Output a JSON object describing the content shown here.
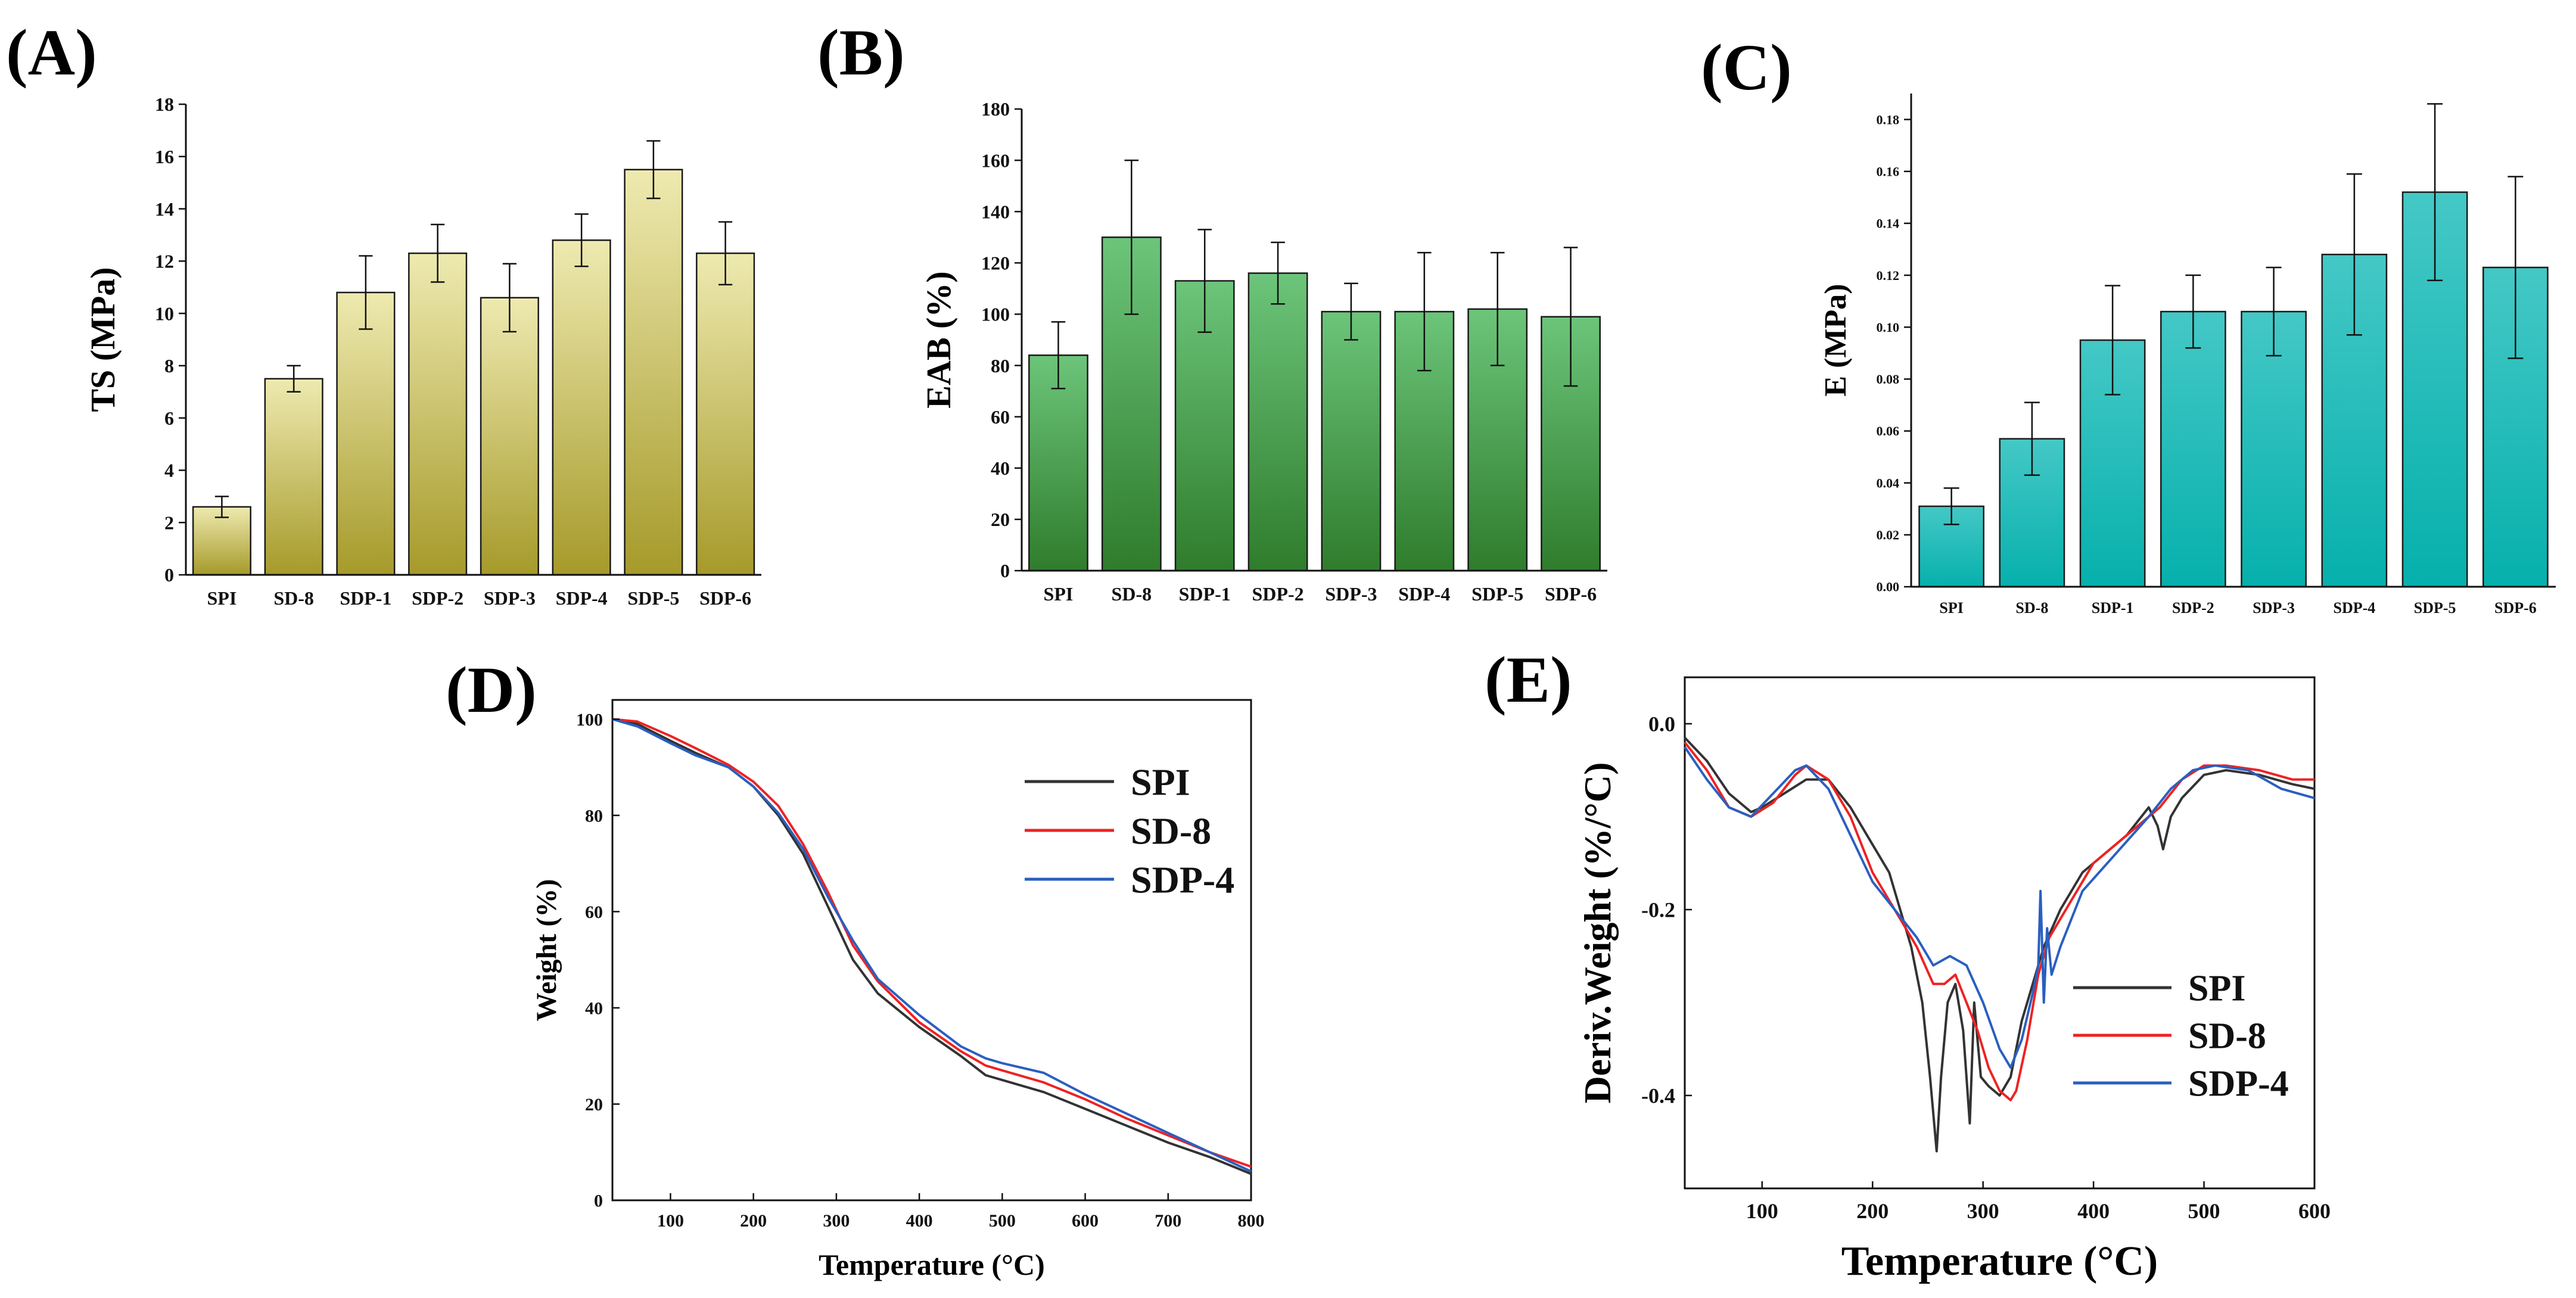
{
  "chart_data": [
    {
      "id": "A",
      "type": "bar",
      "panel_label": "(A)",
      "ylabel": "TS (MPa)",
      "xlabel": "",
      "categories": [
        "SPI",
        "SD-8",
        "SDP-1",
        "SDP-2",
        "SDP-3",
        "SDP-4",
        "SDP-5",
        "SDP-6"
      ],
      "values": [
        2.6,
        7.5,
        10.8,
        12.3,
        10.6,
        12.8,
        15.5,
        12.3
      ],
      "errors": [
        0.4,
        0.5,
        1.4,
        1.1,
        1.3,
        1.0,
        1.1,
        1.2
      ],
      "ylim": [
        0,
        18
      ],
      "yticks": [
        0,
        2,
        4,
        6,
        8,
        10,
        12,
        14,
        16,
        18
      ],
      "color_top": "#eeeab0",
      "color_bottom": "#a69a2a"
    },
    {
      "id": "B",
      "type": "bar",
      "panel_label": "(B)",
      "ylabel": "EAB (%)",
      "xlabel": "",
      "categories": [
        "SPI",
        "SD-8",
        "SDP-1",
        "SDP-2",
        "SDP-3",
        "SDP-4",
        "SDP-5",
        "SDP-6"
      ],
      "values": [
        84,
        130,
        113,
        116,
        101,
        101,
        102,
        99
      ],
      "errors": [
        13,
        30,
        20,
        12,
        11,
        23,
        22,
        27
      ],
      "ylim": [
        0,
        180
      ],
      "yticks": [
        0,
        20,
        40,
        60,
        80,
        100,
        120,
        140,
        160,
        180
      ],
      "color_top": "#6cc57a",
      "color_bottom": "#2f7c2c"
    },
    {
      "id": "C",
      "type": "bar",
      "panel_label": "(C)",
      "ylabel": "E (MPa)",
      "xlabel": "",
      "categories": [
        "SPI",
        "SD-8",
        "SDP-1",
        "SDP-2",
        "SDP-3",
        "SDP-4",
        "SDP-5",
        "SDP-6"
      ],
      "values": [
        0.031,
        0.057,
        0.095,
        0.106,
        0.106,
        0.128,
        0.152,
        0.123
      ],
      "errors": [
        0.007,
        0.014,
        0.021,
        0.014,
        0.017,
        0.031,
        0.034,
        0.035
      ],
      "ylim": [
        0,
        0.19
      ],
      "yticks": [
        0.0,
        0.02,
        0.04,
        0.06,
        0.08,
        0.1,
        0.12,
        0.14,
        0.16,
        0.18
      ],
      "ytick_labels": [
        "0.00",
        "0.02",
        "0.04",
        "0.06",
        "0.08",
        "0.10",
        "0.12",
        "0.14",
        "0.16",
        "0.18"
      ],
      "color_top": "#44c8c6",
      "color_bottom": "#06b0ac"
    },
    {
      "id": "D",
      "type": "line",
      "panel_label": "(D)",
      "xlabel": "Temperature (°C)",
      "ylabel": "Weight (%)",
      "xlim": [
        30,
        800
      ],
      "ylim": [
        0,
        104
      ],
      "xticks": [
        100,
        200,
        300,
        400,
        500,
        600,
        700,
        800
      ],
      "yticks": [
        0,
        20,
        40,
        60,
        80,
        100
      ],
      "legend_position": "top-right",
      "series": [
        {
          "name": "SPI",
          "color": "#333333",
          "x": [
            30,
            60,
            100,
            130,
            170,
            200,
            230,
            260,
            290,
            320,
            350,
            400,
            450,
            480,
            500,
            550,
            600,
            650,
            700,
            750,
            800
          ],
          "y": [
            100,
            99,
            95.5,
            93,
            90,
            86,
            80,
            72,
            61,
            50,
            43,
            36,
            30,
            26,
            25,
            22.5,
            19,
            15.5,
            12,
            9,
            5.5
          ]
        },
        {
          "name": "SD-8",
          "color": "#ee2222",
          "x": [
            30,
            60,
            100,
            130,
            170,
            200,
            230,
            260,
            290,
            320,
            350,
            400,
            450,
            480,
            500,
            550,
            600,
            650,
            700,
            750,
            800
          ],
          "y": [
            100,
            99.5,
            96.5,
            94,
            90.5,
            87,
            82,
            74,
            64,
            53,
            45.5,
            37,
            31,
            28,
            27,
            24.5,
            21,
            17,
            13.5,
            10,
            7
          ]
        },
        {
          "name": "SDP-4",
          "color": "#2a5fc0",
          "x": [
            30,
            60,
            100,
            130,
            170,
            200,
            230,
            260,
            290,
            320,
            350,
            400,
            450,
            480,
            500,
            550,
            600,
            650,
            700,
            750,
            800
          ],
          "y": [
            100,
            98.5,
            95,
            92.5,
            90,
            86,
            80.5,
            73,
            63,
            54,
            46,
            38.5,
            32,
            29.5,
            28.5,
            26.5,
            22,
            18,
            14,
            10,
            6
          ]
        }
      ]
    },
    {
      "id": "E",
      "type": "line",
      "panel_label": "(E)",
      "xlabel": "Temperature (°C)",
      "ylabel": "Deriv.Weight (%/°C)",
      "xlim": [
        30,
        600
      ],
      "ylim": [
        -0.5,
        0.05
      ],
      "xticks": [
        100,
        200,
        300,
        400,
        500,
        600
      ],
      "yticks": [
        0.0,
        -0.2,
        -0.4
      ],
      "ytick_labels": [
        "0.0",
        "-0.2",
        "-0.4"
      ],
      "legend_position": "bottom-right",
      "series": [
        {
          "name": "SPI",
          "color": "#333333",
          "x": [
            30,
            50,
            70,
            90,
            100,
            120,
            140,
            160,
            180,
            200,
            215,
            225,
            235,
            245,
            252,
            258,
            262,
            268,
            275,
            282,
            288,
            292,
            298,
            305,
            315,
            325,
            335,
            345,
            355,
            370,
            390,
            410,
            430,
            450,
            458,
            463,
            470,
            480,
            500,
            520,
            550,
            580,
            600
          ],
          "y": [
            -0.015,
            -0.04,
            -0.075,
            -0.095,
            -0.09,
            -0.075,
            -0.06,
            -0.06,
            -0.09,
            -0.13,
            -0.16,
            -0.2,
            -0.24,
            -0.3,
            -0.38,
            -0.46,
            -0.38,
            -0.3,
            -0.28,
            -0.33,
            -0.43,
            -0.3,
            -0.38,
            -0.39,
            -0.4,
            -0.38,
            -0.32,
            -0.28,
            -0.24,
            -0.2,
            -0.16,
            -0.14,
            -0.12,
            -0.09,
            -0.11,
            -0.135,
            -0.1,
            -0.08,
            -0.055,
            -0.05,
            -0.055,
            -0.065,
            -0.07
          ]
        },
        {
          "name": "SD-8",
          "color": "#ee2222",
          "x": [
            30,
            50,
            70,
            90,
            110,
            130,
            140,
            160,
            180,
            200,
            220,
            240,
            255,
            265,
            275,
            285,
            295,
            305,
            315,
            325,
            330,
            340,
            350,
            360,
            380,
            400,
            430,
            460,
            480,
            500,
            520,
            550,
            580,
            600
          ],
          "y": [
            -0.02,
            -0.05,
            -0.09,
            -0.1,
            -0.085,
            -0.055,
            -0.045,
            -0.06,
            -0.1,
            -0.16,
            -0.2,
            -0.24,
            -0.28,
            -0.28,
            -0.27,
            -0.3,
            -0.33,
            -0.37,
            -0.395,
            -0.405,
            -0.395,
            -0.34,
            -0.27,
            -0.23,
            -0.19,
            -0.15,
            -0.12,
            -0.09,
            -0.06,
            -0.045,
            -0.045,
            -0.05,
            -0.06,
            -0.06
          ]
        },
        {
          "name": "SDP-4",
          "color": "#2a5fc0",
          "x": [
            30,
            50,
            70,
            90,
            110,
            130,
            140,
            160,
            180,
            200,
            220,
            240,
            255,
            270,
            285,
            300,
            315,
            325,
            335,
            345,
            350,
            352,
            355,
            358,
            362,
            370,
            390,
            420,
            450,
            470,
            490,
            510,
            540,
            570,
            600
          ],
          "y": [
            -0.025,
            -0.06,
            -0.09,
            -0.1,
            -0.075,
            -0.05,
            -0.045,
            -0.07,
            -0.12,
            -0.17,
            -0.2,
            -0.23,
            -0.26,
            -0.25,
            -0.26,
            -0.3,
            -0.35,
            -0.37,
            -0.34,
            -0.29,
            -0.26,
            -0.18,
            -0.3,
            -0.22,
            -0.27,
            -0.24,
            -0.18,
            -0.14,
            -0.1,
            -0.07,
            -0.05,
            -0.045,
            -0.05,
            -0.07,
            -0.08
          ]
        }
      ]
    }
  ]
}
